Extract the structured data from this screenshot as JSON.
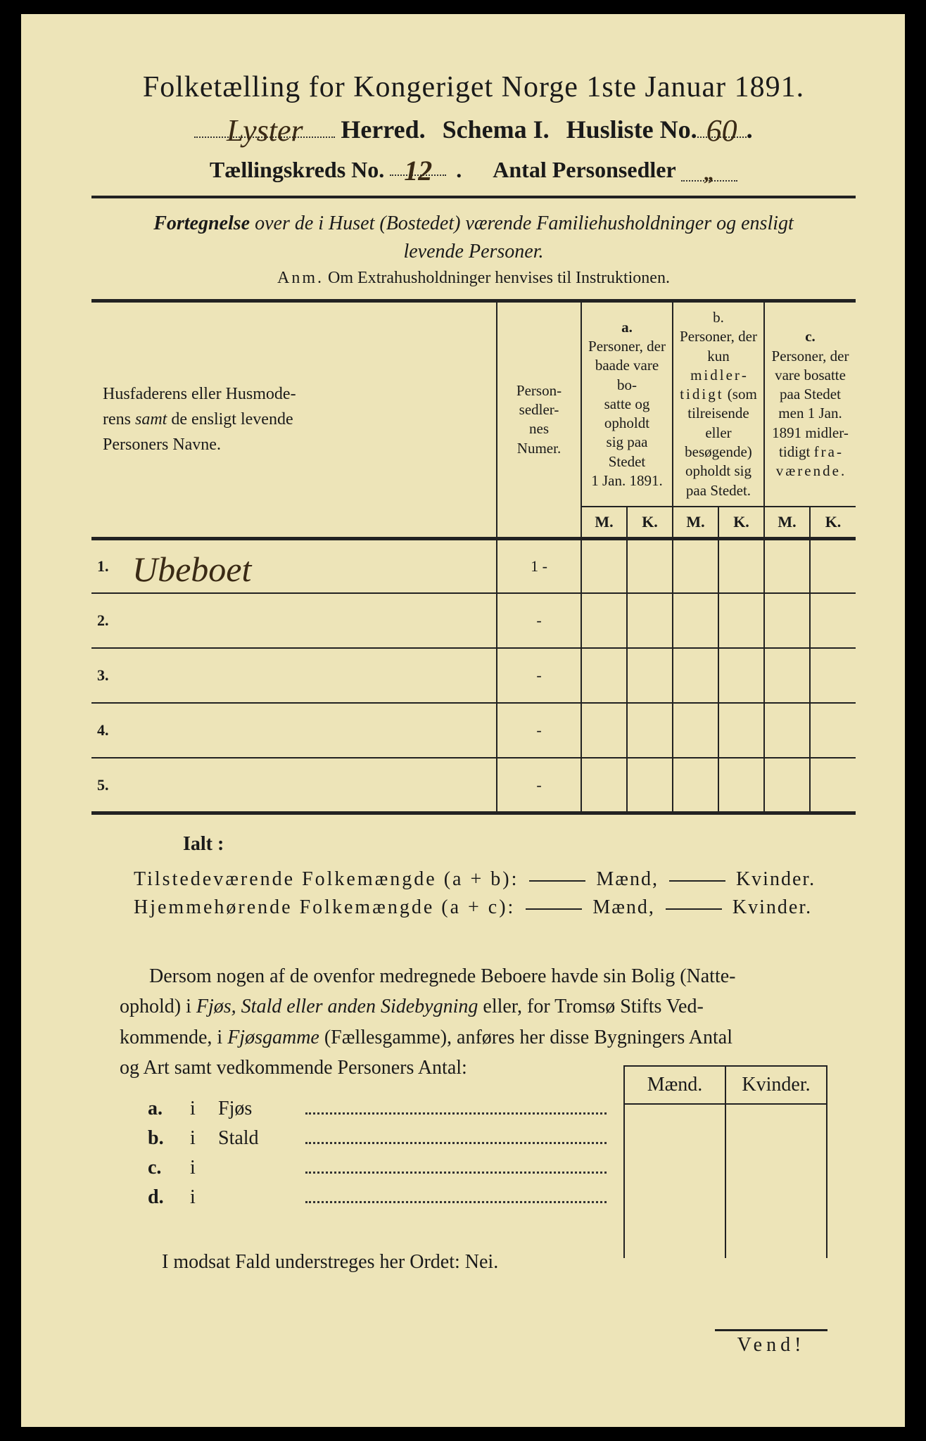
{
  "page": {
    "background_color": "#ede4b8",
    "text_color": "#1a1a1a",
    "border_color": "#222222",
    "handwriting_color": "#3a2a15"
  },
  "header": {
    "title": "Folketælling for Kongeriget Norge 1ste Januar 1891.",
    "herred_hand": "Lyster",
    "herred_label": "Herred.",
    "schema_label": "Schema I.",
    "husliste_label": "Husliste No.",
    "husliste_no_hand": "60",
    "kreds_label": "Tællingskreds No.",
    "kreds_no_hand": "12",
    "personsedler_label": "Antal Personsedler",
    "personsedler_hand": "„"
  },
  "subtitle": {
    "line1a": "Fortegnelse",
    "line1b": " over de i Huset (Bostedet) værende Familiehusholdninger og ensligt",
    "line2": "levende Personer.",
    "anm_lead": "Anm.",
    "anm_rest": "  Om Extrahusholdninger henvises til Instruktionen."
  },
  "table": {
    "col_names": "Husfaderens eller Husmoderens samt de ensligt levende Personers Navne.",
    "col_numer": "Person-sedler-nes Numer.",
    "col_a_lead": "a.",
    "col_a": "Personer, der baade vare bosatte og opholdt sig paa Stedet 1 Jan. 1891.",
    "col_b_lead": "b.",
    "col_b": "Personer, der kun midlertidigt (som tilreisende eller besøgende) opholdt sig paa Stedet.",
    "col_c_lead": "c.",
    "col_c": "Personer, der vare bosatte paa Stedet men 1 Jan. 1891 midlertidigt fraværende.",
    "M": "M.",
    "K": "K.",
    "rows": [
      {
        "n": "1.",
        "name_hand": "Ubeboet",
        "num": "1 -"
      },
      {
        "n": "2.",
        "name_hand": "",
        "num": "-"
      },
      {
        "n": "3.",
        "name_hand": "",
        "num": "-"
      },
      {
        "n": "4.",
        "name_hand": "",
        "num": "-"
      },
      {
        "n": "5.",
        "name_hand": "",
        "num": "-"
      }
    ]
  },
  "totals": {
    "ialt": "Ialt :",
    "line1_label": "Tilstedeværende Folkemængde (a + b):",
    "line2_label": "Hjemmehørende Folkemængde (a + c):",
    "maend": "Mænd,",
    "kvinder": "Kvinder."
  },
  "para": {
    "text": "Dersom nogen af de ovenfor medregnede Beboere havde sin Bolig (Natteophold) i Fjøs, Stald eller anden Sidebygning eller, for Tromsø Stifts Vedkommende, i Fjøsgamme (Fællesgamme), anføres her disse Bygningers Antal og Art samt vedkommende Personers Antal:"
  },
  "buildings": {
    "maend": "Mænd.",
    "kvinder": "Kvinder.",
    "rows": [
      {
        "k": "a.",
        "i": "i",
        "name": "Fjøs"
      },
      {
        "k": "b.",
        "i": "i",
        "name": "Stald"
      },
      {
        "k": "c.",
        "i": "i",
        "name": ""
      },
      {
        "k": "d.",
        "i": "i",
        "name": ""
      }
    ]
  },
  "footer": {
    "nei": "I modsat Fald understreges her Ordet: Nei.",
    "vend": "Vend!"
  }
}
